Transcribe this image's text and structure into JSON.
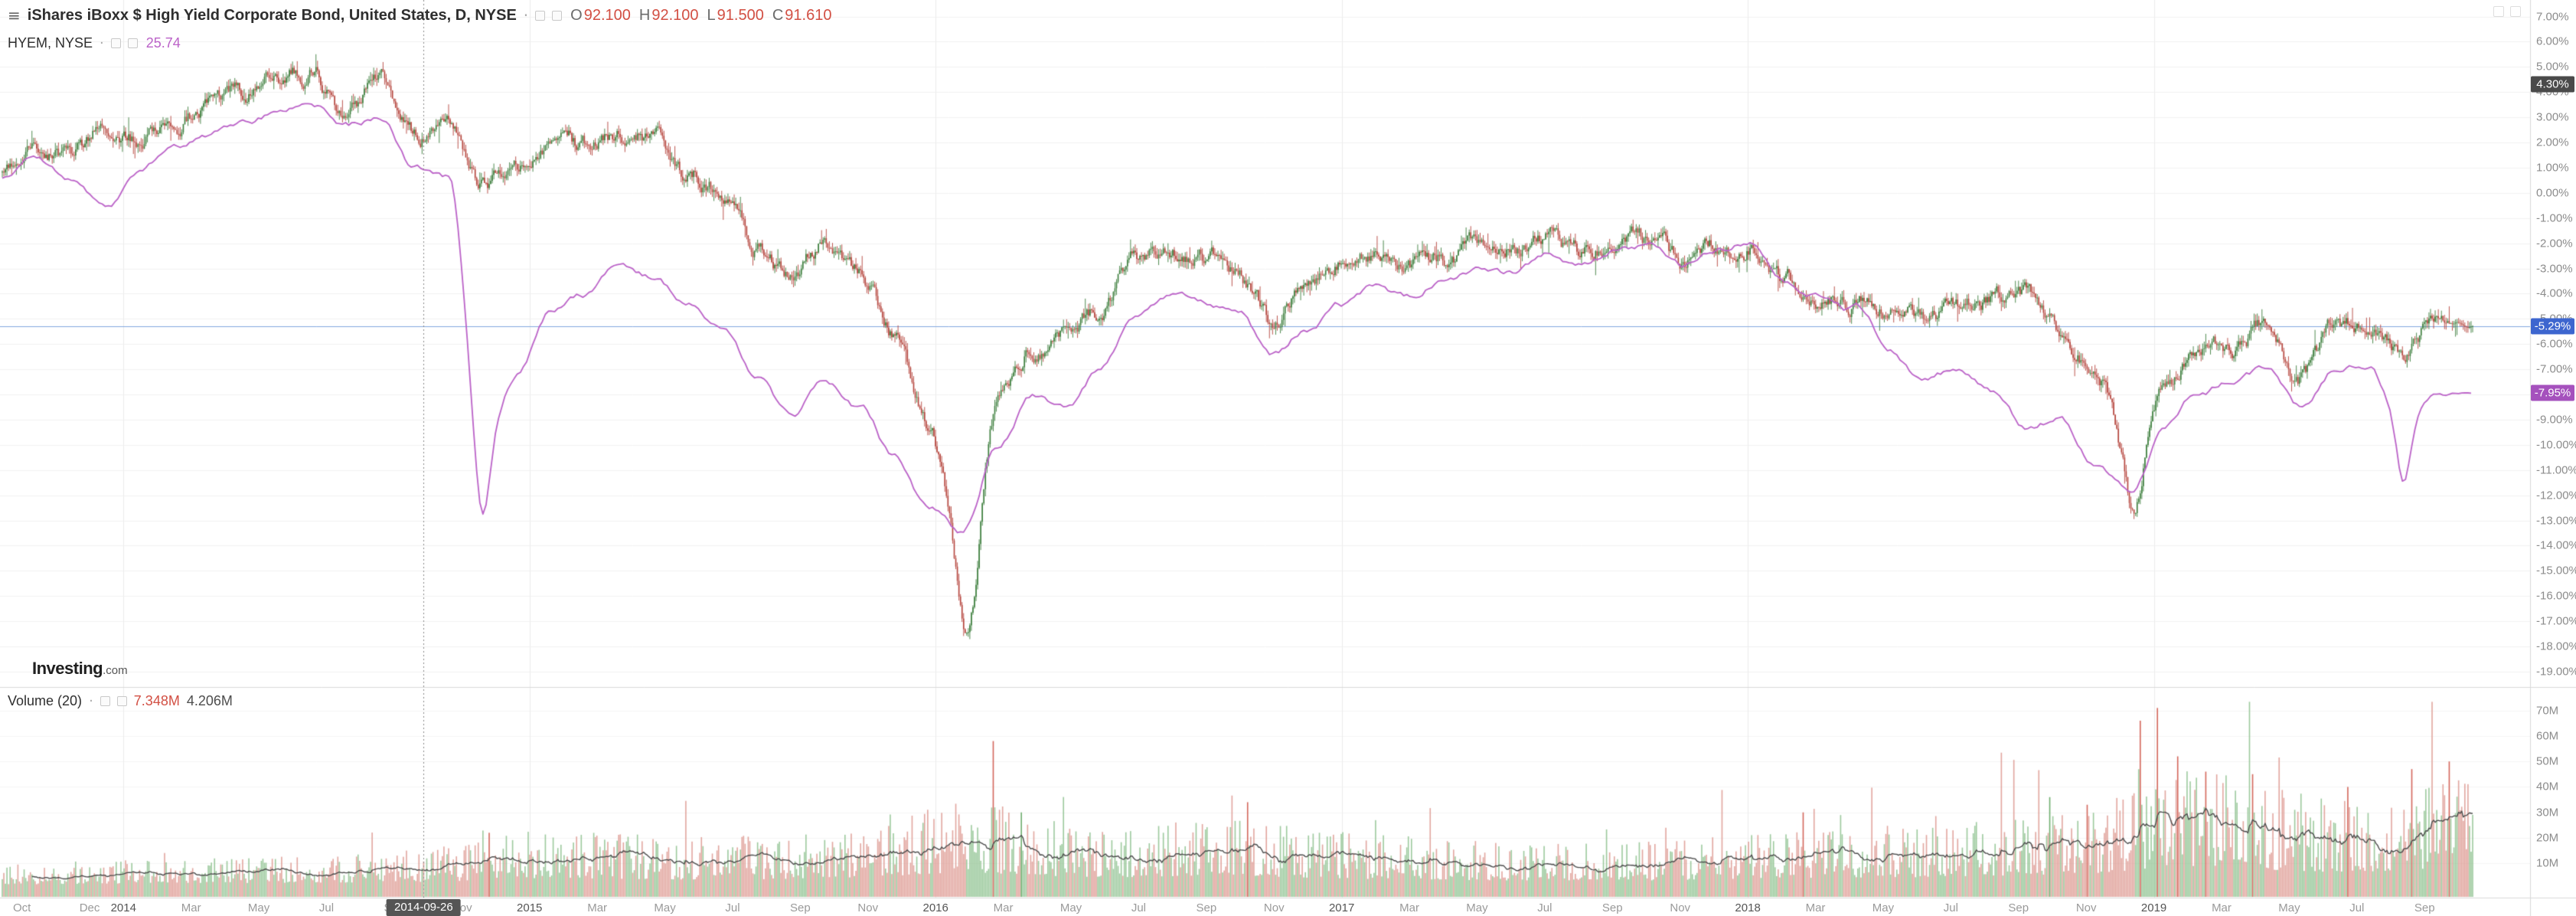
{
  "icons": {
    "menu": "≡",
    "dot": "·"
  },
  "legend": {
    "main": {
      "title": "iShares iBoxx $ High Yield Corporate Bond, United States, D, NYSE",
      "o_label": "O",
      "o": "92.100",
      "h_label": "H",
      "h": "92.100",
      "l_label": "L",
      "l": "91.500",
      "c_label": "C",
      "c": "91.610"
    },
    "compare": {
      "title": "HYEM, NYSE",
      "value": "25.74"
    },
    "volume": {
      "title": "Volume (20)",
      "value": "7.348M",
      "ma_value": "4.206M"
    }
  },
  "watermark": {
    "name": "Investing",
    "tld": ".com"
  },
  "badges": {
    "crosshair": "4.30%",
    "last": "-5.29%",
    "compare": "-7.95%",
    "date": "2014-09-26"
  },
  "chart_data": {
    "type": "candlestick",
    "overlays": [
      "compare-line",
      "volume-histogram",
      "volume-ma"
    ],
    "title": "iShares iBoxx $ High Yield Corporate Bond, United States, D, NYSE",
    "compare_symbol": "HYEM, NYSE",
    "scale": "percent-change",
    "y_axis": {
      "min": -19,
      "max": 7,
      "step": 1,
      "unit": "%"
    },
    "volume_axis": {
      "min": 0,
      "max": 70,
      "step": 10,
      "unit": "M"
    },
    "visible_range": {
      "start": "2013-10",
      "end": "2019-10"
    },
    "months_total": 73,
    "time_labels": [
      [
        "Oct",
        0.58
      ],
      [
        "Dec",
        2.58
      ],
      [
        "2014",
        3.58
      ],
      [
        "Mar",
        5.58
      ],
      [
        "May",
        7.58
      ],
      [
        "Jul",
        9.58
      ],
      [
        "Sep",
        11.58
      ],
      [
        "Nov",
        13.58
      ],
      [
        "2015",
        15.58
      ],
      [
        "Mar",
        17.58
      ],
      [
        "May",
        19.58
      ],
      [
        "Jul",
        21.58
      ],
      [
        "Sep",
        23.58
      ],
      [
        "Nov",
        25.58
      ],
      [
        "2016",
        27.58
      ],
      [
        "Mar",
        29.58
      ],
      [
        "May",
        31.58
      ],
      [
        "Jul",
        33.58
      ],
      [
        "Sep",
        35.58
      ],
      [
        "Nov",
        37.58
      ],
      [
        "2017",
        39.58
      ],
      [
        "Mar",
        41.58
      ],
      [
        "May",
        43.58
      ],
      [
        "Jul",
        45.58
      ],
      [
        "Sep",
        47.58
      ],
      [
        "Nov",
        49.58
      ],
      [
        "2018",
        51.58
      ],
      [
        "Mar",
        53.58
      ],
      [
        "May",
        55.58
      ],
      [
        "Jul",
        57.58
      ],
      [
        "Sep",
        59.58
      ],
      [
        "Nov",
        61.58
      ],
      [
        "2019",
        63.58
      ],
      [
        "Mar",
        65.58
      ],
      [
        "May",
        67.58
      ],
      [
        "Jul",
        69.58
      ],
      [
        "Sep",
        71.58
      ]
    ],
    "crosshair": {
      "date": "2014-09-26",
      "m": 12.45,
      "price_pct": 4.3,
      "price_label": "4.30%"
    },
    "main_series": {
      "name": "iShares iBoxx $ High Yield Corporate Bond",
      "last_pct": -5.29,
      "anchors_pct": [
        1.0,
        1.9,
        1.6,
        2.5,
        2.2,
        3.1,
        3.4,
        3.9,
        4.6,
        4.9,
        3.2,
        4.2,
        2.4,
        3.0,
        0.5,
        1.0,
        2.2,
        1.8,
        2.4,
        2.2,
        0.8,
        0.2,
        -1.8,
        -3.5,
        -1.8,
        -3.2,
        -5.5,
        -9.0,
        -14.0,
        -8.5,
        -6.0,
        -5.5,
        -4.8,
        -2.8,
        -2.2,
        -2.6,
        -3.0,
        -5.2,
        -3.4,
        -2.8,
        -2.4,
        -3.0,
        -2.6,
        -2.3,
        -2.2,
        -1.7,
        -2.5,
        -1.8,
        -1.9,
        -2.7,
        -2.2,
        -1.9,
        -3.6,
        -4.0,
        -4.3,
        -4.4,
        -5.0,
        -4.4,
        -4.1,
        -4.3,
        -5.6,
        -6.8,
        -10.5,
        -7.6,
        -6.4,
        -6.0,
        -5.3,
        -7.2,
        -5.4,
        -5.2,
        -6.2,
        -5.0,
        -5.29
      ],
      "spikes": [
        [
          28.6,
          -3.6,
          0.45
        ],
        [
          63.0,
          -2.2,
          0.35
        ]
      ]
    },
    "compare_series": {
      "name": "HYEM, NYSE",
      "last_pct": -7.95,
      "anchors_pct": [
        0.5,
        1.3,
        0.3,
        -0.8,
        0.5,
        2.0,
        2.2,
        2.8,
        3.2,
        3.4,
        2.6,
        3.0,
        1.0,
        0.5,
        -10.0,
        -7.0,
        -4.5,
        -4.0,
        -3.0,
        -3.5,
        -4.5,
        -5.5,
        -7.5,
        -9.0,
        -7.5,
        -8.5,
        -10.5,
        -12.5,
        -13.5,
        -10.0,
        -8.0,
        -8.5,
        -7.0,
        -5.0,
        -4.0,
        -4.2,
        -4.5,
        -6.5,
        -5.5,
        -4.5,
        -3.8,
        -4.2,
        -3.5,
        -3.0,
        -3.2,
        -2.5,
        -2.8,
        -2.2,
        -2.0,
        -2.8,
        -2.3,
        -1.8,
        -3.5,
        -4.0,
        -4.5,
        -6.0,
        -7.5,
        -7.0,
        -8.0,
        -9.5,
        -9.0,
        -10.8,
        -12.0,
        -9.5,
        -8.0,
        -7.5,
        -7.0,
        -8.5,
        -7.0,
        -6.8,
        -9.5,
        -8.0,
        -7.95
      ],
      "spikes": [
        [
          14.19,
          -2.6,
          0.28
        ],
        [
          70.97,
          -2.0,
          0.25
        ]
      ]
    },
    "volume": {
      "name": "Volume (20)",
      "ma_window": 20,
      "anchors_m": [
        5,
        6,
        6.5,
        7.5,
        12,
        10.5,
        11,
        18,
        13,
        14,
        11,
        9.5,
        9.5,
        12,
        13,
        16,
        24,
        19,
        22
      ],
      "spikes": [
        [
          14.4,
          22,
          "r"
        ],
        [
          29.3,
          58,
          "r"
        ],
        [
          30.1,
          30,
          "g"
        ],
        [
          36.8,
          34,
          "r"
        ],
        [
          53.2,
          30,
          "r"
        ],
        [
          60.5,
          36,
          "g"
        ],
        [
          61.6,
          33,
          "r"
        ],
        [
          63.2,
          66,
          "r"
        ],
        [
          63.7,
          71,
          "r"
        ],
        [
          64.3,
          52,
          "r"
        ],
        [
          65.1,
          46,
          "r"
        ],
        [
          66.5,
          45,
          "r"
        ],
        [
          69.3,
          40,
          "r"
        ],
        [
          71.2,
          47,
          "r"
        ],
        [
          72.3,
          50,
          "r"
        ]
      ]
    },
    "colors": {
      "up": "#3c7e3c",
      "down": "#b5443c",
      "volume_up": "rgba(133,189,134,0.8)",
      "volume_down": "rgba(219,144,135,0.8)",
      "volume_spike_down": "#d4675c",
      "volume_spike_up": "#6fae6f",
      "compare": "#bb62c8",
      "price_line": "#82a7e0",
      "last_badge": "#3d66cf",
      "compare_badge": "#a551bd",
      "crosshair_badge": "#4a4a4a",
      "date_badge": "#555555",
      "ohlc_value": "#d24f43",
      "grid": "#f2f2f2",
      "grid_vol": "#f5f5f5",
      "year_line": "#ececec",
      "axis_border": "#d9d9d9",
      "ma": "#4d4d4d",
      "crosshair": "#888888"
    }
  }
}
